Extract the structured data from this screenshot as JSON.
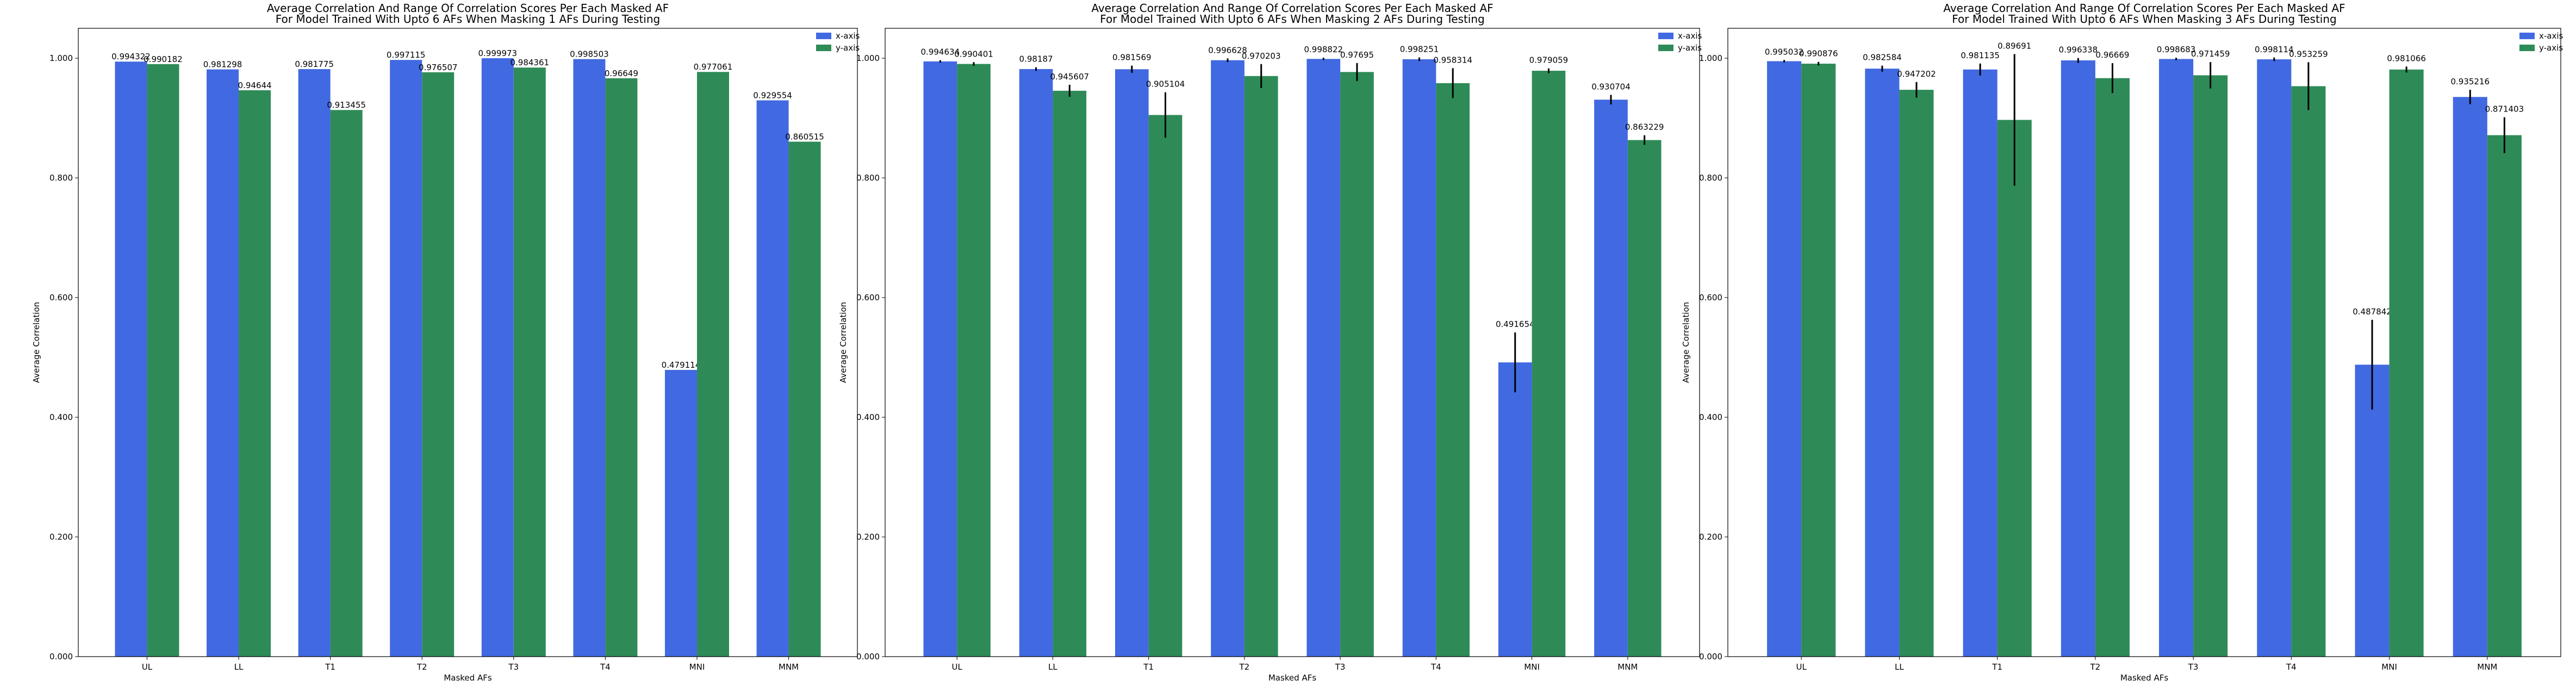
{
  "colors": {
    "x_axis": "#4169e1",
    "y_axis": "#2e8b57",
    "error_bar": "#000000"
  },
  "chart_data": [
    {
      "type": "bar",
      "title": "Average Correlation And Range Of Correlation Scores Per Each Masked AF\nFor Model Trained With Upto 6 AFs When Masking 1 AFs During Testing",
      "xlabel": "Masked AFs",
      "ylabel": "Average Correlation",
      "ylim": [
        0,
        1.05
      ],
      "yticks": [
        "0.000",
        "0.200",
        "0.400",
        "0.600",
        "0.800",
        "1.000"
      ],
      "categories": [
        "UL",
        "LL",
        "T1",
        "T2",
        "T3",
        "T4",
        "MNI",
        "MNM"
      ],
      "legend_position": "top-right",
      "series": [
        {
          "name": "x-axis",
          "values": [
            0.994322,
            0.981298,
            0.981775,
            0.997115,
            0.999973,
            0.998503,
            0.479114,
            0.929554
          ],
          "labels": [
            "0.994322",
            "0.981298",
            "0.981775",
            "0.997115",
            "0.999973",
            "0.998503",
            "0.479114",
            "0.929554"
          ],
          "errors": [
            0,
            0,
            0,
            0,
            0,
            0,
            0,
            0
          ]
        },
        {
          "name": "y-axis",
          "values": [
            0.990182,
            0.94644,
            0.913455,
            0.976507,
            0.984361,
            0.96649,
            0.977061,
            0.860515
          ],
          "labels": [
            "0.990182",
            "0.94644",
            "0.913455",
            "0.976507",
            "0.984361",
            "0.96649",
            "0.977061",
            "0.860515"
          ],
          "errors": [
            0,
            0,
            0,
            0,
            0,
            0,
            0,
            0
          ]
        }
      ]
    },
    {
      "type": "bar",
      "title": "Average Correlation And Range Of Correlation Scores Per Each Masked AF\nFor Model Trained With Upto 6 AFs When Masking 2 AFs During Testing",
      "xlabel": "Masked AFs",
      "ylabel": "Average Correlation",
      "ylim": [
        0,
        1.05
      ],
      "yticks": [
        "0.000",
        "0.200",
        "0.400",
        "0.600",
        "0.800",
        "1.000"
      ],
      "categories": [
        "UL",
        "LL",
        "T1",
        "T2",
        "T3",
        "T4",
        "MNI",
        "MNM"
      ],
      "legend_position": "top-right",
      "series": [
        {
          "name": "x-axis",
          "values": [
            0.994634,
            0.98187,
            0.981569,
            0.996628,
            0.998822,
            0.998251,
            0.491654,
            0.930704
          ],
          "labels": [
            "0.994634",
            "0.98187",
            "0.981569",
            "0.996628",
            "0.998822",
            "0.998251",
            "0.491654",
            "0.930704"
          ],
          "errors": [
            0.002,
            0.003,
            0.006,
            0.003,
            0.002,
            0.003,
            0.05,
            0.008
          ]
        },
        {
          "name": "y-axis",
          "values": [
            0.990401,
            0.945607,
            0.905104,
            0.970203,
            0.97695,
            0.958314,
            0.979059,
            0.863229
          ],
          "labels": [
            "0.990401",
            "0.945607",
            "0.905104",
            "0.970203",
            "0.97695",
            "0.958314",
            "0.979059",
            "0.863229"
          ],
          "errors": [
            0.003,
            0.01,
            0.038,
            0.02,
            0.015,
            0.025,
            0.004,
            0.008
          ]
        }
      ]
    },
    {
      "type": "bar",
      "title": "Average Correlation And Range Of Correlation Scores Per Each Masked AF\nFor Model Trained With Upto 6 AFs When Masking 3 AFs During Testing",
      "xlabel": "Masked AFs",
      "ylabel": "Average Correlation",
      "ylim": [
        0,
        1.05
      ],
      "yticks": [
        "0.000",
        "0.200",
        "0.400",
        "0.600",
        "0.800",
        "1.000"
      ],
      "categories": [
        "UL",
        "LL",
        "T1",
        "T2",
        "T3",
        "T4",
        "MNI",
        "MNM"
      ],
      "legend_position": "top-right",
      "series": [
        {
          "name": "x-axis",
          "values": [
            0.995032,
            0.982584,
            0.981135,
            0.996338,
            0.998683,
            0.998114,
            0.487842,
            0.935216
          ],
          "labels": [
            "0.995032",
            "0.982584",
            "0.981135",
            "0.996338",
            "0.998683",
            "0.998114",
            "0.487842",
            "0.935216"
          ],
          "errors": [
            0.002,
            0.005,
            0.01,
            0.004,
            0.002,
            0.003,
            0.075,
            0.012
          ]
        },
        {
          "name": "y-axis",
          "values": [
            0.990876,
            0.947202,
            0.89691,
            0.96669,
            0.971459,
            0.953259,
            0.981066,
            0.871403
          ],
          "labels": [
            "0.990876",
            "0.947202",
            "0.89691",
            "0.96669",
            "0.971459",
            "0.953259",
            "0.981066",
            "0.871403"
          ],
          "errors": [
            0.003,
            0.013,
            0.11,
            0.025,
            0.022,
            0.04,
            0.005,
            0.03
          ]
        }
      ]
    }
  ]
}
